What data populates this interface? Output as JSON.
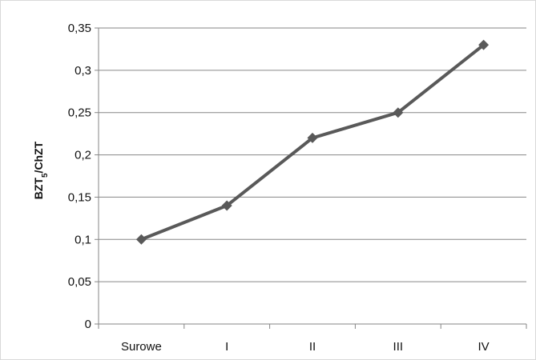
{
  "chart_data": {
    "type": "line",
    "categories": [
      "Surowe",
      "I",
      "II",
      "III",
      "IV"
    ],
    "series": [
      {
        "values": [
          0.1,
          0.14,
          0.22,
          0.25,
          0.33
        ]
      }
    ],
    "ylabel": {
      "main": "BZT",
      "sub": "5",
      "rest": "/ChZT"
    },
    "xlabel": "",
    "ylim": [
      0,
      0.35
    ],
    "yticks": [
      "0",
      "0,05",
      "0,1",
      "0,15",
      "0,2",
      "0,25",
      "0,3",
      "0,35"
    ],
    "grid": true,
    "legend": "none",
    "marker": "diamond",
    "colors": {
      "line": "#595959",
      "grid": "#868686",
      "axis": "#868686",
      "frame": "#d9d9d9"
    }
  }
}
